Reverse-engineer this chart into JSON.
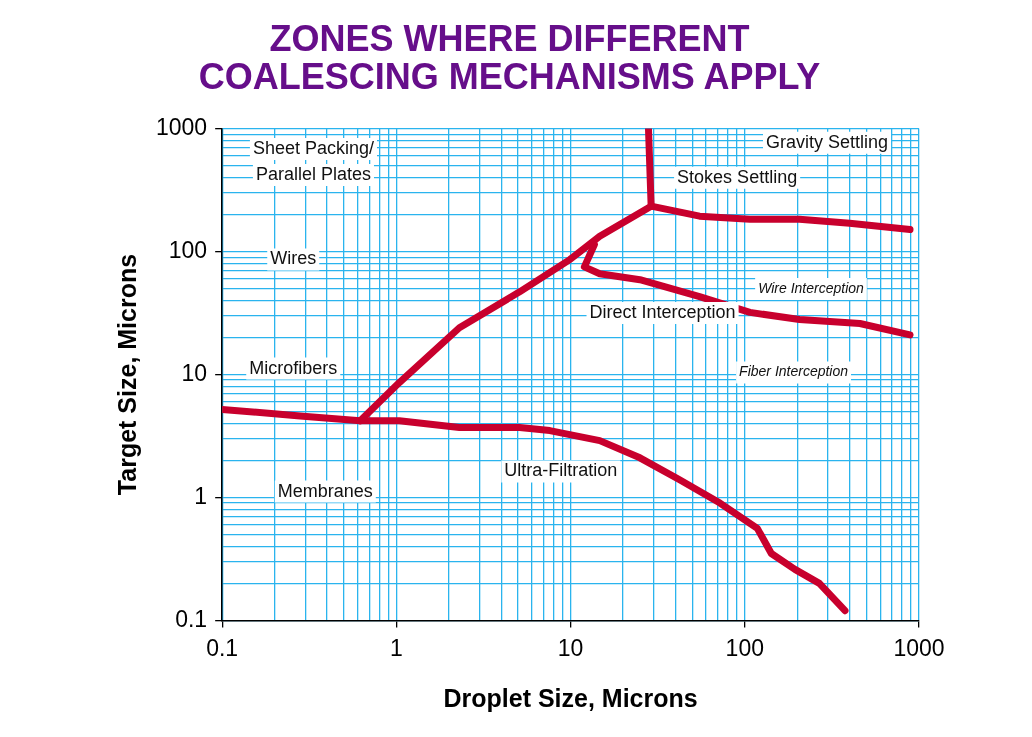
{
  "chart_data": {
    "type": "line",
    "title": "ZONES WHERE DIFFERENT\nCOALESCING MECHANISMS APPLY",
    "xlabel": "Droplet Size, Microns",
    "ylabel": "Target Size, Microns",
    "log": "xy",
    "grid": true,
    "legend": false,
    "marker": "none",
    "line_style": "solid",
    "xlim": [
      0.1,
      1000
    ],
    "ylim": [
      0.1,
      1000
    ],
    "xticks": [
      0.1,
      {
        "value": 0.2,
        "label": null
      },
      {
        "value": 0.3,
        "label": null
      },
      {
        "value": 0.4,
        "label": null
      },
      {
        "value": 0.5,
        "label": null
      },
      {
        "value": 0.6,
        "label": null
      },
      {
        "value": 0.7,
        "label": null
      },
      {
        "value": 0.8,
        "label": null
      },
      {
        "value": 0.9,
        "label": null
      },
      1,
      {
        "value": 2,
        "label": null
      },
      {
        "value": 3,
        "label": null
      },
      {
        "value": 4,
        "label": null
      },
      {
        "value": 5,
        "label": null
      },
      {
        "value": 6,
        "label": null
      },
      {
        "value": 7,
        "label": null
      },
      {
        "value": 8,
        "label": null
      },
      {
        "value": 9,
        "label": null
      },
      10,
      {
        "value": 20,
        "label": null
      },
      {
        "value": 30,
        "label": null
      },
      {
        "value": 40,
        "label": null
      },
      {
        "value": 50,
        "label": null
      },
      {
        "value": 60,
        "label": null
      },
      {
        "value": 70,
        "label": null
      },
      {
        "value": 80,
        "label": null
      },
      {
        "value": 90,
        "label": null
      },
      100,
      {
        "value": 200,
        "label": null
      },
      {
        "value": 300,
        "label": null
      },
      {
        "value": 400,
        "label": null
      },
      {
        "value": 500,
        "label": null
      },
      {
        "value": 600,
        "label": null
      },
      {
        "value": 700,
        "label": null
      },
      {
        "value": 800,
        "label": null
      },
      {
        "value": 900,
        "label": null
      },
      1000
    ],
    "yticks": [
      0.1,
      {
        "value": 0.2,
        "label": null
      },
      {
        "value": 0.3,
        "label": null
      },
      {
        "value": 0.4,
        "label": null
      },
      {
        "value": 0.5,
        "label": null
      },
      {
        "value": 0.6,
        "label": null
      },
      {
        "value": 0.7,
        "label": null
      },
      {
        "value": 0.8,
        "label": null
      },
      {
        "value": 0.9,
        "label": null
      },
      1,
      {
        "value": 2,
        "label": null
      },
      {
        "value": 3,
        "label": null
      },
      {
        "value": 4,
        "label": null
      },
      {
        "value": 5,
        "label": null
      },
      {
        "value": 6,
        "label": null
      },
      {
        "value": 7,
        "label": null
      },
      {
        "value": 8,
        "label": null
      },
      {
        "value": 9,
        "label": null
      },
      10,
      {
        "value": 20,
        "label": null
      },
      {
        "value": 30,
        "label": null
      },
      {
        "value": 40,
        "label": null
      },
      {
        "value": 50,
        "label": null
      },
      {
        "value": 60,
        "label": null
      },
      {
        "value": 70,
        "label": null
      },
      {
        "value": 80,
        "label": null
      },
      {
        "value": 90,
        "label": null
      },
      100,
      {
        "value": 200,
        "label": null
      },
      {
        "value": 300,
        "label": null
      },
      {
        "value": 400,
        "label": null
      },
      {
        "value": 500,
        "label": null
      },
      {
        "value": 600,
        "label": null
      },
      {
        "value": 700,
        "label": null
      },
      {
        "value": 800,
        "label": null
      },
      {
        "value": 900,
        "label": null
      },
      1000
    ],
    "series": [
      {
        "color": "#c8002d",
        "x": [
          0.1,
          0.28,
          0.62,
          1.04,
          2.3,
          5.1,
          7.6,
          14.7,
          25,
          42,
          72,
          118,
          142,
          194,
          268,
          376
        ],
        "values": [
          5.2,
          4.6,
          4.2,
          4.2,
          3.7,
          3.7,
          3.5,
          2.9,
          2.1,
          1.4,
          0.9,
          0.56,
          0.35,
          0.26,
          0.2,
          0.12
        ]
      },
      {
        "color": "#c8002d",
        "x": [
          0.62,
          1.04,
          2.3,
          5.1,
          9.9,
          14.7,
          29
        ],
        "values": [
          4.2,
          8.6,
          24,
          47,
          86,
          133,
          234
        ]
      },
      {
        "color": "#c8002d",
        "x": [
          29,
          28
        ],
        "values": [
          234,
          1000
        ]
      },
      {
        "color": "#c8002d",
        "x": [
          29,
          55,
          107,
          206,
          400,
          888
        ],
        "values": [
          234,
          194,
          183,
          183,
          170,
          151
        ]
      },
      {
        "color": "#c8002d",
        "x": [
          13.7,
          12,
          14.7,
          25,
          55,
          107,
          206,
          458,
          888
        ],
        "values": [
          114,
          75,
          66,
          59,
          43,
          32,
          28,
          26,
          21
        ]
      }
    ],
    "annotations": [
      "Sheet Packing/\nParallel Plates",
      "Gravity Settling",
      "Stokes Settling",
      "Wires",
      "Wire Interception",
      "Direct Interception",
      "Microfibers",
      "Fiber Interception",
      "Ultra-Filtration",
      "Membranes"
    ]
  }
}
